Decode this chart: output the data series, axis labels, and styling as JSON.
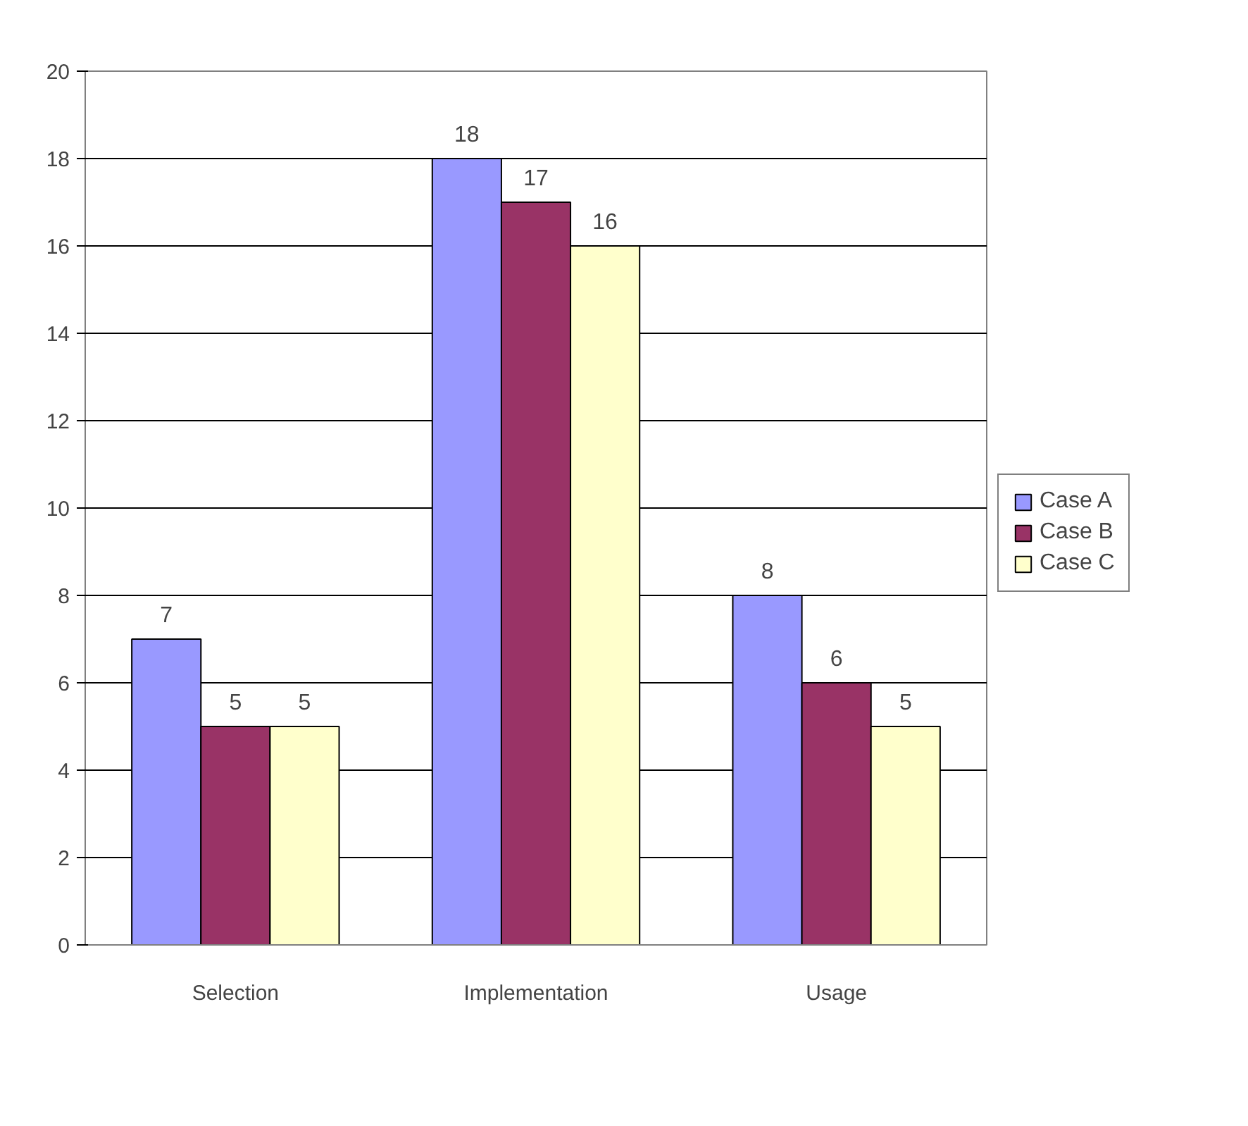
{
  "chart_data": {
    "type": "bar",
    "categories": [
      "Selection",
      "Implementation",
      "Usage"
    ],
    "series": [
      {
        "name": "Case A",
        "color": "#9999ff",
        "values": [
          7,
          18,
          8
        ]
      },
      {
        "name": "Case B",
        "color": "#993366",
        "values": [
          5,
          17,
          6
        ]
      },
      {
        "name": "Case C",
        "color": "#ffffcc",
        "values": [
          5,
          16,
          5
        ]
      }
    ],
    "ylim": [
      0,
      20
    ],
    "yticks": [
      0,
      2,
      4,
      6,
      8,
      10,
      12,
      14,
      16,
      18,
      20
    ],
    "grid": "y",
    "legend": "right",
    "data_labels": true
  }
}
